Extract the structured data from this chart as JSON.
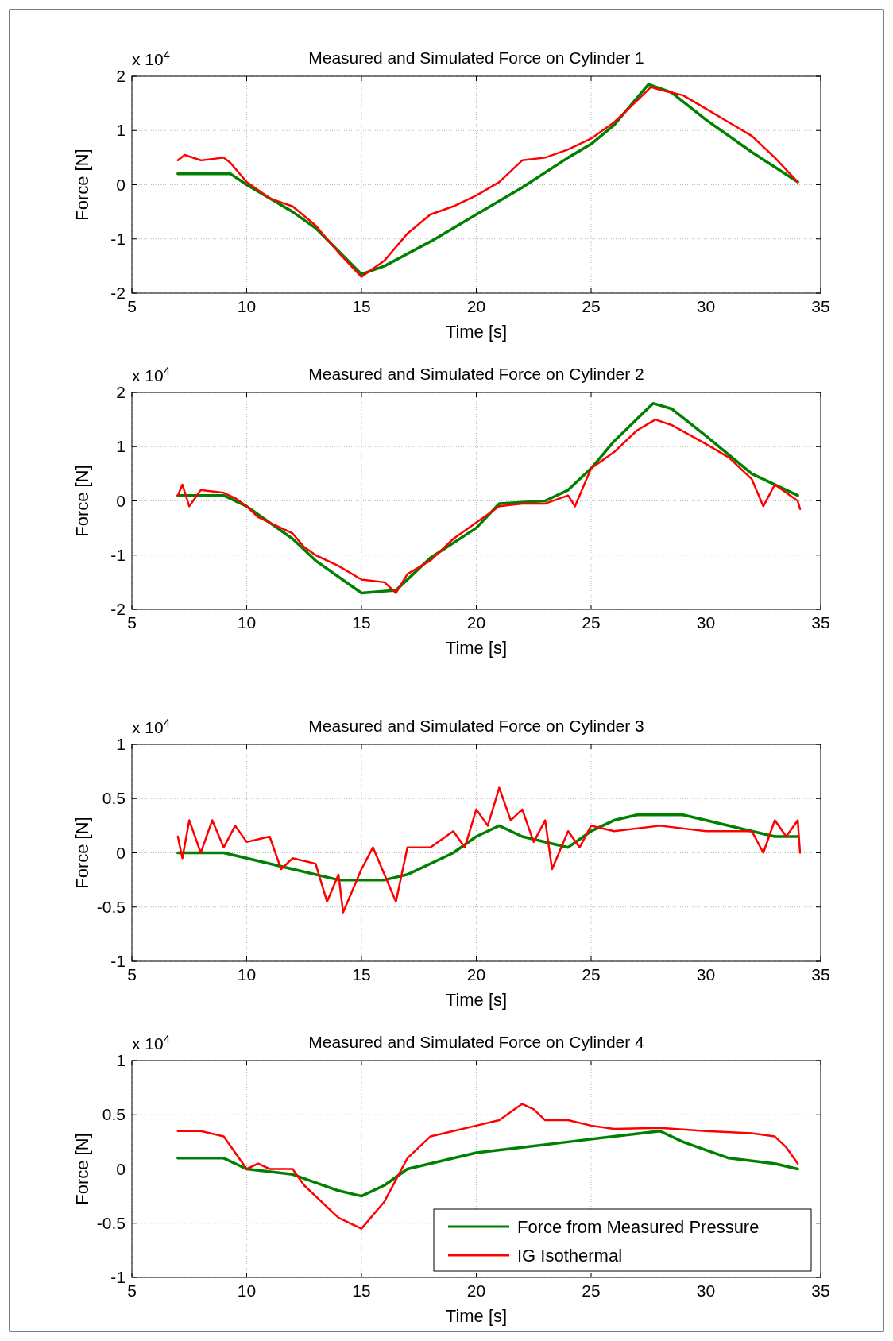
{
  "chart_data": [
    {
      "type": "line",
      "title": "Measured and Simulated Force on Cylinder 1",
      "xlabel": "Time [s]",
      "ylabel": "Force [N]",
      "annotations": [
        "x 10$^{4}$"
      ],
      "xlim": [
        5,
        35
      ],
      "xticks": [
        5,
        10,
        15,
        20,
        25,
        30,
        35
      ],
      "ylim": [
        -2,
        2
      ],
      "yticks": [
        -2,
        -1,
        0,
        1,
        2
      ],
      "grid": true,
      "legend": false,
      "line_style": "solid",
      "marker": "none",
      "series": [
        {
          "color": "#008000",
          "x": [
            7,
            9.3,
            10,
            12,
            13,
            15,
            16,
            18,
            20,
            22,
            24,
            25,
            26,
            27.5,
            28.5,
            30,
            32,
            34
          ],
          "values": [
            0.2,
            0.2,
            0,
            -0.5,
            -0.8,
            -1.65,
            -1.5,
            -1.05,
            -0.55,
            -0.05,
            0.5,
            0.75,
            1.1,
            1.85,
            1.7,
            1.2,
            0.6,
            0.05
          ]
        },
        {
          "color": "#ff0000",
          "x": [
            7,
            7.3,
            8,
            9,
            9.3,
            10,
            11,
            12,
            13,
            14,
            15,
            16,
            17,
            18,
            19,
            20,
            21,
            22,
            23,
            24,
            25,
            26,
            27,
            27.6,
            28,
            29,
            30,
            31,
            32,
            33,
            34
          ],
          "values": [
            0.45,
            0.55,
            0.45,
            0.5,
            0.4,
            0.05,
            -0.25,
            -0.4,
            -0.75,
            -1.25,
            -1.7,
            -1.4,
            -0.9,
            -0.55,
            -0.4,
            -0.2,
            0.05,
            0.45,
            0.5,
            0.65,
            0.85,
            1.15,
            1.55,
            1.8,
            1.75,
            1.65,
            1.4,
            1.15,
            0.9,
            0.5,
            0.05
          ]
        }
      ]
    },
    {
      "type": "line",
      "title": "Measured and Simulated Force on Cylinder 2",
      "xlabel": "Time [s]",
      "ylabel": "Force [N]",
      "annotations": [
        "x 10$^{4}$"
      ],
      "xlim": [
        5,
        35
      ],
      "xticks": [
        5,
        10,
        15,
        20,
        25,
        30,
        35
      ],
      "ylim": [
        -2,
        2
      ],
      "yticks": [
        -2,
        -1,
        0,
        1,
        2
      ],
      "grid": true,
      "legend": false,
      "line_style": "solid",
      "marker": "none",
      "series": [
        {
          "color": "#008000",
          "x": [
            7,
            9,
            10,
            12,
            13,
            15,
            16.5,
            18,
            20,
            21,
            23,
            24,
            25,
            26,
            27.7,
            28.5,
            30,
            32,
            34
          ],
          "values": [
            0.1,
            0.1,
            -0.1,
            -0.7,
            -1.1,
            -1.7,
            -1.65,
            -1.05,
            -0.5,
            -0.05,
            0,
            0.2,
            0.6,
            1.1,
            1.8,
            1.7,
            1.2,
            0.5,
            0.1
          ]
        },
        {
          "color": "#ff0000",
          "x": [
            7,
            7.2,
            7.5,
            8,
            9,
            9.5,
            10,
            10.5,
            11,
            12,
            12.5,
            13,
            14,
            15,
            16,
            16.5,
            17,
            18,
            19,
            20,
            21,
            22,
            23,
            24,
            24.3,
            25,
            26,
            27,
            27.8,
            28.5,
            30,
            31,
            32,
            32.5,
            33,
            33.5,
            34,
            34.1
          ],
          "values": [
            0.1,
            0.3,
            -0.1,
            0.2,
            0.15,
            0.05,
            -0.1,
            -0.3,
            -0.4,
            -0.6,
            -0.85,
            -1,
            -1.2,
            -1.45,
            -1.5,
            -1.7,
            -1.35,
            -1.1,
            -0.7,
            -0.4,
            -0.1,
            -0.05,
            -0.05,
            0.1,
            -0.1,
            0.6,
            0.9,
            1.3,
            1.5,
            1.4,
            1.05,
            0.8,
            0.4,
            -0.1,
            0.3,
            0.15,
            0,
            -0.15
          ]
        }
      ]
    },
    {
      "type": "line",
      "title": "Measured and Simulated Force on Cylinder 3",
      "xlabel": "Time [s]",
      "ylabel": "Force [N]",
      "annotations": [
        "x 10$^{4}$"
      ],
      "xlim": [
        5,
        35
      ],
      "xticks": [
        5,
        10,
        15,
        20,
        25,
        30,
        35
      ],
      "ylim": [
        -1,
        1
      ],
      "yticks": [
        -1,
        -0.5,
        0,
        0.5,
        1
      ],
      "grid": true,
      "legend": false,
      "line_style": "solid",
      "marker": "none",
      "series": [
        {
          "color": "#008000",
          "x": [
            7,
            9,
            10,
            12,
            14,
            16,
            17,
            19,
            20,
            21,
            22,
            24,
            25,
            26,
            27,
            29,
            30,
            32,
            33,
            34
          ],
          "values": [
            0,
            0,
            -0.05,
            -0.15,
            -0.25,
            -0.25,
            -0.2,
            0,
            0.15,
            0.25,
            0.15,
            0.05,
            0.2,
            0.3,
            0.35,
            0.35,
            0.3,
            0.2,
            0.15,
            0.15
          ]
        },
        {
          "color": "#ff0000",
          "x": [
            7,
            7.2,
            7.5,
            8,
            8.5,
            9,
            9.5,
            10,
            11,
            11.5,
            12,
            13,
            13.5,
            14,
            14.2,
            15,
            15.5,
            16,
            16.5,
            17,
            18,
            19,
            19.5,
            20,
            20.5,
            21,
            21.5,
            22,
            22.5,
            23,
            23.3,
            24,
            24.5,
            25,
            26,
            28,
            30,
            32,
            32.5,
            33,
            33.5,
            34,
            34.1
          ],
          "values": [
            0.15,
            -0.05,
            0.3,
            0,
            0.3,
            0.05,
            0.25,
            0.1,
            0.15,
            -0.15,
            -0.05,
            -0.1,
            -0.45,
            -0.2,
            -0.55,
            -0.15,
            0.05,
            -0.2,
            -0.45,
            0.05,
            0.05,
            0.2,
            0.05,
            0.4,
            0.25,
            0.6,
            0.3,
            0.4,
            0.1,
            0.3,
            -0.15,
            0.2,
            0.05,
            0.25,
            0.2,
            0.25,
            0.2,
            0.2,
            0,
            0.3,
            0.15,
            0.3,
            0
          ]
        }
      ]
    },
    {
      "type": "line",
      "title": "Measured and Simulated Force on Cylinder 4",
      "xlabel": "Time [s]",
      "ylabel": "Force [N]",
      "annotations": [
        "x 10$^{4}$"
      ],
      "xlim": [
        5,
        35
      ],
      "xticks": [
        5,
        10,
        15,
        20,
        25,
        30,
        35
      ],
      "ylim": [
        -1,
        1
      ],
      "yticks": [
        -1,
        -0.5,
        0,
        0.5,
        1
      ],
      "grid": true,
      "legend": "bottom right",
      "line_style": "solid",
      "marker": "none",
      "series": [
        {
          "name": "Force from Measured Pressure",
          "color": "#008000",
          "x": [
            7,
            9,
            10,
            12,
            14,
            15,
            16,
            17,
            20,
            22,
            24,
            26,
            28,
            29,
            31,
            33,
            34
          ],
          "values": [
            0.1,
            0.1,
            0,
            -0.05,
            -0.2,
            -0.25,
            -0.15,
            0,
            0.15,
            0.2,
            0.25,
            0.3,
            0.35,
            0.25,
            0.1,
            0.05,
            0
          ]
        },
        {
          "name": "IG Isothermal",
          "color": "#ff0000",
          "x": [
            7,
            8,
            9,
            10,
            10.5,
            11,
            12,
            12.5,
            13,
            14,
            15,
            16,
            17,
            17.5,
            18,
            19,
            20,
            21,
            22,
            22.5,
            23,
            24,
            25,
            26,
            28,
            30,
            32,
            33,
            33.5,
            34
          ],
          "values": [
            0.35,
            0.35,
            0.3,
            0,
            0.05,
            0,
            0,
            -0.15,
            -0.25,
            -0.45,
            -0.55,
            -0.3,
            0.1,
            0.2,
            0.3,
            0.35,
            0.4,
            0.45,
            0.6,
            0.55,
            0.45,
            0.45,
            0.4,
            0.37,
            0.38,
            0.35,
            0.33,
            0.3,
            0.2,
            0.05
          ]
        }
      ]
    }
  ]
}
